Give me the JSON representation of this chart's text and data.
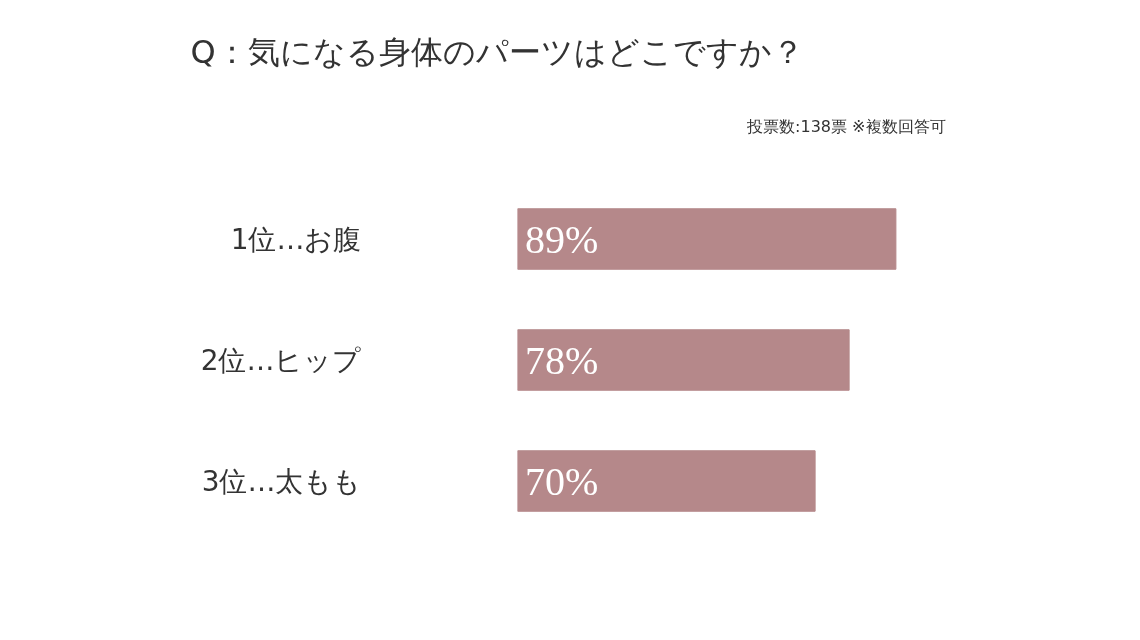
{
  "chart_data": {
    "type": "bar",
    "orientation": "horizontal",
    "title": "Q：気になる身体のパーツはどこですか？",
    "subtitle": "投票数:138票 ※複数回答可",
    "categories": [
      "1位…お腹",
      "2位…ヒップ",
      "3位…太もも"
    ],
    "values": [
      89,
      78,
      70
    ],
    "value_labels": [
      "89%",
      "78%",
      "70%"
    ],
    "color": "#b5888a",
    "grid": false
  }
}
